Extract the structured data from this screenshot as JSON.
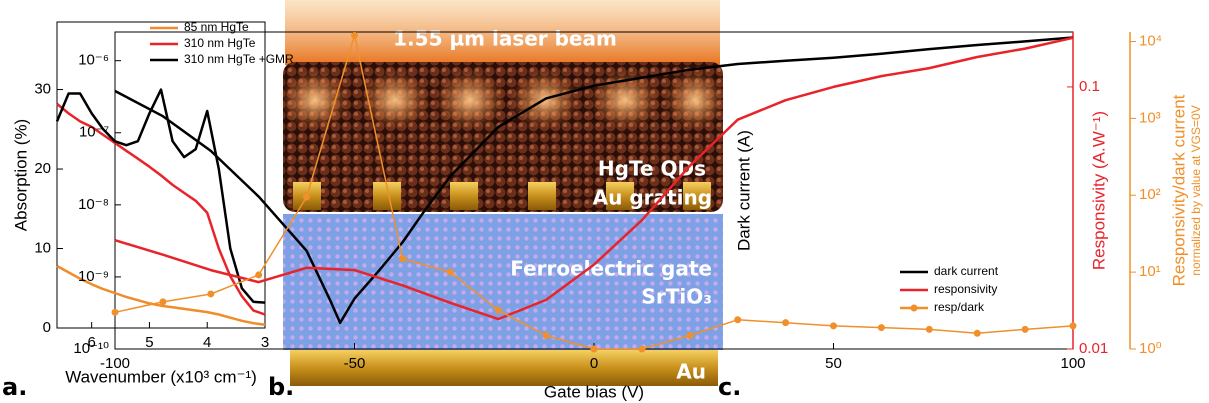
{
  "panel_labels": [
    "a.",
    "b.",
    "c."
  ],
  "illustration": {
    "beam": "1.55 µm laser beam",
    "layers": [
      "HgTe QDs",
      "Au grating",
      "Ferroelectric gate",
      "SrTiO₃",
      "Au"
    ]
  },
  "chart_data": [
    {
      "type": "line",
      "xlabel": "Wavenumber (x10³ cm⁻¹)",
      "ylabel": "Absorption (%)",
      "x": [
        6.6,
        6.4,
        6.2,
        6.0,
        5.8,
        5.6,
        5.4,
        5.2,
        5.0,
        4.8,
        4.6,
        4.4,
        4.2,
        4.0,
        3.8,
        3.6,
        3.4,
        3.2,
        3.0
      ],
      "xlim": [
        6.6,
        3
      ],
      "xticks": [
        6,
        5,
        4,
        3
      ],
      "ylim": [
        0,
        38.5
      ],
      "yticks": [
        0,
        10,
        20,
        30
      ],
      "legend": "upper right",
      "series": [
        {
          "name": "85 nm HgTe",
          "color": "#f08c2a",
          "values": [
            7.8,
            7,
            6.2,
            5.5,
            4.9,
            4.4,
            3.9,
            3.5,
            3.1,
            2.8,
            2.6,
            2.4,
            2.2,
            2.0,
            1.7,
            1.3,
            0.9,
            0.6,
            0.4
          ]
        },
        {
          "name": "310 nm HgTe",
          "color": "#e8232a",
          "values": [
            28.2,
            27,
            26,
            25.3,
            24.3,
            23.3,
            22.3,
            21.3,
            20.3,
            19.2,
            18,
            17,
            16,
            14.5,
            10,
            6.5,
            4,
            2.2,
            1.7
          ]
        },
        {
          "name": "310 nm HgTe +GMR",
          "color": "#000000",
          "values": [
            26,
            29.5,
            29.5,
            27,
            25,
            23.5,
            23,
            23.5,
            27,
            30,
            23.5,
            21.5,
            22.5,
            27.3,
            20,
            10,
            5,
            3.3,
            3.2
          ]
        }
      ]
    },
    {
      "type": "line",
      "xlabel": "Gate bias (V)",
      "ylabel": "Dark current (A)",
      "y2label": "Responsivity (A.W⁻¹)",
      "y3label": [
        "Responsivity/dark current",
        "normalized by value at VGS=0V"
      ],
      "xlim": [
        -100,
        100
      ],
      "xticks": [
        -100,
        -50,
        0,
        50,
        100
      ],
      "legend": "lower right",
      "ylog": true,
      "ylim": [
        1e-10,
        2.5e-06
      ],
      "yticks": [
        {
          "value": 1e-10,
          "label": "10⁻¹⁰"
        },
        {
          "value": 1e-09,
          "label": "10⁻⁹"
        },
        {
          "value": 1e-08,
          "label": "10⁻⁸"
        },
        {
          "value": 1e-07,
          "label": "10⁻⁷"
        },
        {
          "value": 1e-06,
          "label": "10⁻⁶"
        }
      ],
      "y2log": true,
      "y2lim": [
        0.01,
        0.162
      ],
      "y2ticks": [
        0.01,
        0.1
      ],
      "y2color": "#e8232a",
      "y3log": true,
      "y3lim": [
        1,
        13300
      ],
      "y3ticks": [
        {
          "value": 1,
          "label": "10⁰"
        },
        {
          "value": 10,
          "label": "10¹"
        },
        {
          "value": 100,
          "label": "10²"
        },
        {
          "value": 1000,
          "label": "10³"
        },
        {
          "value": 10000,
          "label": "10⁴"
        }
      ],
      "y3color": "#f0902a",
      "series": [
        {
          "name": "dark current",
          "color": "#000000",
          "x": [
            -100,
            -90,
            -80,
            -70,
            -60,
            -55,
            -53,
            -50,
            -45,
            -40,
            -35,
            -30,
            -20,
            -10,
            0,
            10,
            20,
            30,
            40,
            50,
            60,
            70,
            80,
            90,
            100
          ],
          "values": [
            3.8e-07,
            1.7e-07,
            5.6e-08,
            1.3e-08,
            2.3e-09,
            4.6e-10,
            2.3e-10,
            5e-10,
            1.2e-09,
            3e-09,
            9e-09,
            2.5e-08,
            1.2e-07,
            3e-07,
            4.5e-07,
            5.8e-07,
            7.5e-07,
            9e-07,
            1e-06,
            1.1e-06,
            1.25e-06,
            1.45e-06,
            1.65e-06,
            1.85e-06,
            2.1e-06
          ]
        },
        {
          "name": "responsivity",
          "color": "#e8232a",
          "axis": "y2",
          "x": [
            -100,
            -90,
            -80,
            -70,
            -60,
            -50,
            -40,
            -30,
            -20,
            -10,
            0,
            10,
            20,
            30,
            40,
            50,
            60,
            70,
            80,
            90,
            100
          ],
          "values": [
            0.026,
            0.0229,
            0.02,
            0.018,
            0.0204,
            0.02,
            0.0175,
            0.015,
            0.013,
            0.0154,
            0.021,
            0.031,
            0.05,
            0.075,
            0.089,
            0.1,
            0.11,
            0.118,
            0.13,
            0.14,
            0.154
          ]
        },
        {
          "name": "resp/dark",
          "color": "#f0902a",
          "axis": "y3",
          "markers": true,
          "x": [
            -100,
            -90,
            -80,
            -70,
            -60,
            -50,
            -40,
            -30,
            -20,
            -10,
            0,
            10,
            20,
            30,
            40,
            50,
            60,
            70,
            80,
            90,
            100
          ],
          "values": [
            3.0,
            4.1,
            5.2,
            9.2,
            95,
            12000,
            15,
            10,
            3.2,
            1.5,
            1.0,
            1.0,
            1.5,
            2.4,
            2.2,
            2.0,
            1.9,
            1.8,
            1.6,
            1.8,
            2.0
          ]
        }
      ]
    }
  ]
}
